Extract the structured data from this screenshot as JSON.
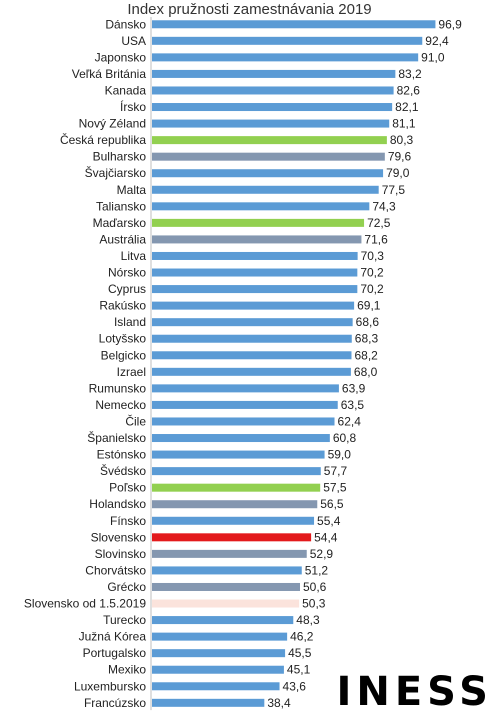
{
  "chart_data": {
    "type": "bar",
    "orientation": "horizontal",
    "title": "Index pružnosti zamestnávania 2019",
    "categories": [
      "Dánsko",
      "USA",
      "Japonsko",
      "Veľká Británia",
      "Kanada",
      "Írsko",
      "Nový Zéland",
      "Česká republika",
      "Bulharsko",
      "Švajčiarsko",
      "Malta",
      "Taliansko",
      "Maďarsko",
      "Austrália",
      "Litva",
      "Nórsko",
      "Cyprus",
      "Rakúsko",
      "Island",
      "Lotyšsko",
      "Belgicko",
      "Izrael",
      "Rumunsko",
      "Nemecko",
      "Čile",
      "Španielsko",
      "Estónsko",
      "Švédsko",
      "Poľsko",
      "Holandsko",
      "Fínsko",
      "Slovensko",
      "Slovinsko",
      "Chorvátsko",
      "Grécko",
      "Slovensko od 1.5.2019",
      "Turecko",
      "Južná Kórea",
      "Portugalsko",
      "Mexiko",
      "Luxembursko",
      "Francúzsko"
    ],
    "values": [
      96.9,
      92.4,
      91.0,
      83.2,
      82.6,
      82.1,
      81.1,
      80.3,
      79.6,
      79.0,
      77.5,
      74.3,
      72.5,
      71.6,
      70.3,
      70.2,
      70.2,
      69.1,
      68.6,
      68.3,
      68.2,
      68.0,
      63.9,
      63.5,
      62.4,
      60.8,
      59.0,
      57.7,
      57.5,
      56.5,
      55.4,
      54.4,
      52.9,
      51.2,
      50.6,
      50.3,
      48.3,
      46.2,
      45.5,
      45.1,
      43.6,
      38.4
    ],
    "value_labels": [
      "96,9",
      "92,4",
      "91,0",
      "83,2",
      "82,6",
      "82,1",
      "81,1",
      "80,3",
      "79,6",
      "79,0",
      "77,5",
      "74,3",
      "72,5",
      "71,6",
      "70,3",
      "70,2",
      "70,2",
      "69,1",
      "68,6",
      "68,3",
      "68,2",
      "68,0",
      "63,9",
      "63,5",
      "62,4",
      "60,8",
      "59,0",
      "57,7",
      "57,5",
      "56,5",
      "55,4",
      "54,4",
      "52,9",
      "51,2",
      "50,6",
      "50,3",
      "48,3",
      "46,2",
      "45,5",
      "45,1",
      "43,6",
      "38,4"
    ],
    "colors": [
      "#5b9bd5",
      "#5b9bd5",
      "#5b9bd5",
      "#5b9bd5",
      "#5b9bd5",
      "#5b9bd5",
      "#5b9bd5",
      "#92d050",
      "#8497b0",
      "#5b9bd5",
      "#5b9bd5",
      "#5b9bd5",
      "#92d050",
      "#8497b0",
      "#5b9bd5",
      "#5b9bd5",
      "#5b9bd5",
      "#5b9bd5",
      "#5b9bd5",
      "#5b9bd5",
      "#5b9bd5",
      "#5b9bd5",
      "#5b9bd5",
      "#5b9bd5",
      "#5b9bd5",
      "#5b9bd5",
      "#5b9bd5",
      "#5b9bd5",
      "#92d050",
      "#8497b0",
      "#5b9bd5",
      "#e31a1c",
      "#8497b0",
      "#5b9bd5",
      "#8497b0",
      "#fbe3dc",
      "#5b9bd5",
      "#5b9bd5",
      "#5b9bd5",
      "#5b9bd5",
      "#5b9bd5",
      "#5b9bd5"
    ],
    "xlim": [
      0,
      100
    ],
    "grid": false,
    "legend": "none",
    "x_axis_visible": false
  },
  "logo": {
    "text": "INESS"
  }
}
